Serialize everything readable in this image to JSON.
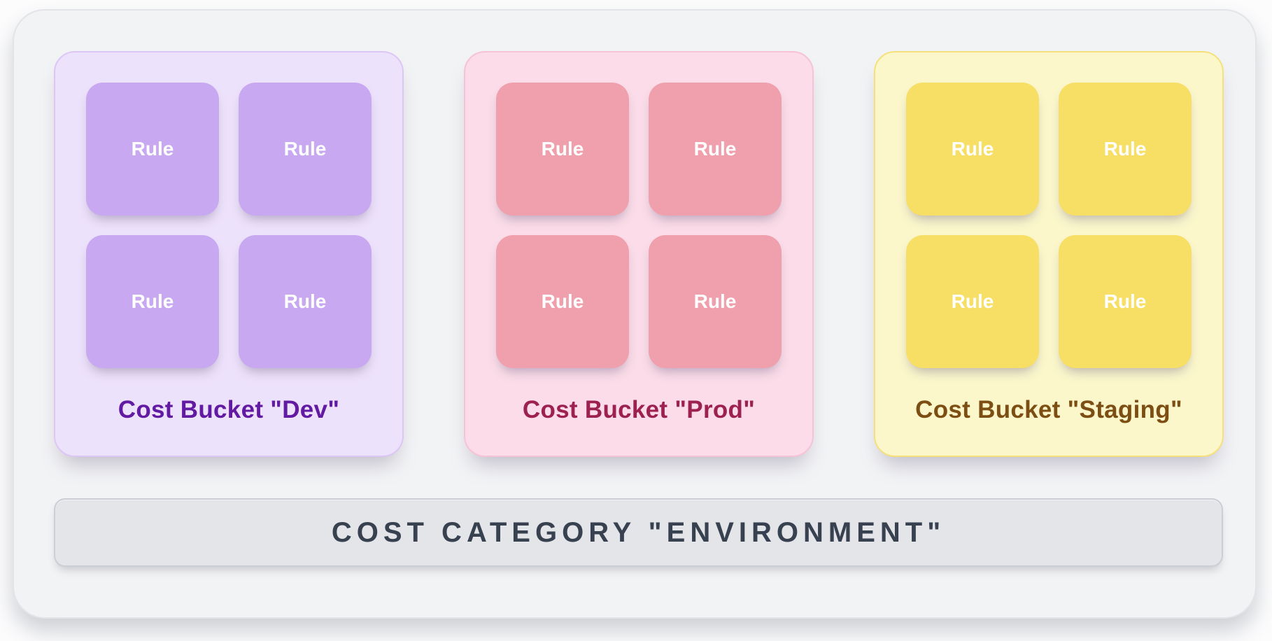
{
  "palette": {
    "colors": {
      "page-bg": "#fcfcfd",
      "frame-bg": "#f2f3f5",
      "frame-border": "#e3e4e8",
      "bar-bg": "#e3e5e9",
      "bar-border": "#cbced4",
      "bar-text": "#38414f"
    }
  },
  "category_bar": {
    "label": "COST CATEGORY \"ENVIRONMENT\""
  },
  "buckets": [
    {
      "name": "Dev",
      "title": "Cost Bucket \"Dev\"",
      "colors": {
        "bg": "#ede2fb",
        "border": "#dcc6f5",
        "tile": "#c8a8f0",
        "title": "#631aa2",
        "rule-text": "#ffffff"
      },
      "rules": [
        "Rule",
        "Rule",
        "Rule",
        "Rule"
      ]
    },
    {
      "name": "Prod",
      "title": "Cost Bucket \"Prod\"",
      "colors": {
        "bg": "#fbdce8",
        "border": "#f6c2d6",
        "tile": "#efa0ac",
        "title": "#9d2150",
        "rule-text": "#ffffff"
      },
      "rules": [
        "Rule",
        "Rule",
        "Rule",
        "Rule"
      ]
    },
    {
      "name": "Staging",
      "title": "Cost Bucket \"Staging\"",
      "colors": {
        "bg": "#fbf7cb",
        "border": "#f5e07c",
        "tile": "#f7de64",
        "title": "#7d4e13",
        "rule-text": "#ffffff"
      },
      "rules": [
        "Rule",
        "Rule",
        "Rule",
        "Rule"
      ]
    }
  ]
}
